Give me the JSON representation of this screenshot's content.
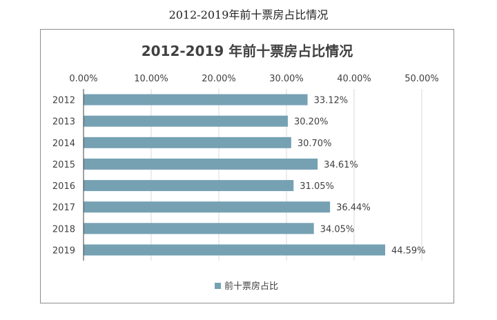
{
  "page_caption": "2012-2019年前十票房占比情况",
  "chart_data": {
    "type": "bar",
    "orientation": "horizontal",
    "title": "2012-2019 年前十票房占比情况",
    "categories": [
      "2012",
      "2013",
      "2014",
      "2015",
      "2016",
      "2017",
      "2018",
      "2019"
    ],
    "series": [
      {
        "name": "前十票房占比",
        "values": [
          33.12,
          30.2,
          30.7,
          34.61,
          31.05,
          36.44,
          34.05,
          44.59
        ],
        "labels": [
          "33.12%",
          "30.20%",
          "30.70%",
          "34.61%",
          "31.05%",
          "36.44%",
          "34.05%",
          "44.59%"
        ],
        "color": "#75a1b3"
      }
    ],
    "x_ticks": [
      "0.00%",
      "10.00%",
      "20.00%",
      "30.00%",
      "40.00%",
      "50.00%"
    ],
    "xlim": [
      0,
      50
    ],
    "x_axis_position": "top",
    "grid": true,
    "legend": "bottom",
    "colors": {
      "gridline": "#d9d9d9",
      "axis": "#404040",
      "text": "#404040"
    }
  }
}
